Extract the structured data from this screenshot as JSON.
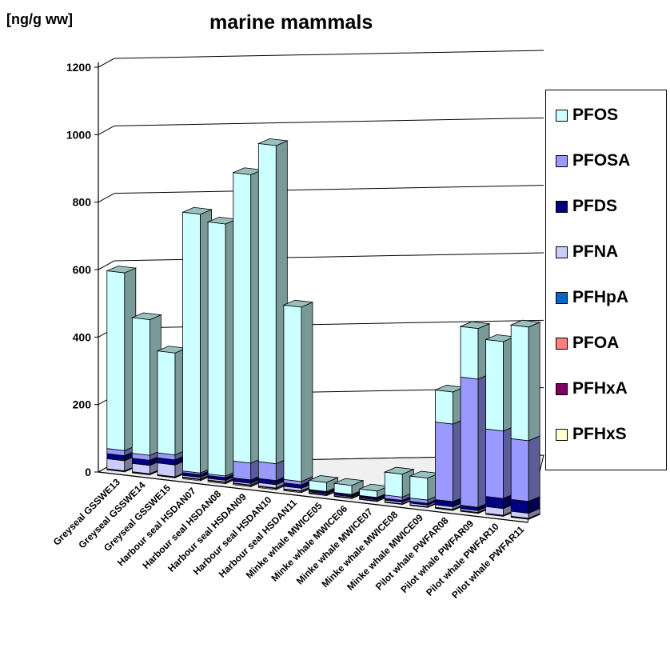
{
  "chart_data": {
    "type": "bar",
    "stacked": true,
    "three_d": true,
    "title": "marine mammals",
    "ylabel": "[ng/g ww]",
    "xlabel": "",
    "ylim": [
      0,
      1200
    ],
    "yticks": [
      0,
      200,
      400,
      600,
      800,
      1000,
      1200
    ],
    "grid": true,
    "legend_position": "right",
    "categories": [
      "Greyseal GSSWE13",
      "Greyseal GSSWE14",
      "Greyseal GSSWE15",
      "Harbour seal HSDAN07",
      "Harbour seal HSDAN08",
      "Harbour seal HSDAN09",
      "Harbour seal HSDAN10",
      "Harbour seal HSDAN11",
      "Minke whale MWICE05",
      "Minke whale MWICE06",
      "Minke whale MWICE07",
      "Minke whale MWICE08",
      "Minke whale MWICE09",
      "Pilot whale PWFAR08",
      "Pilot whale PWFAR09",
      "Pilot whale PWFAR10",
      "Pilot whale PWFAR11"
    ],
    "series": [
      {
        "name": "PFHxS",
        "color": "#ffffcc",
        "values": [
          2,
          2,
          2,
          3,
          3,
          3,
          3,
          3,
          1,
          1,
          1,
          1,
          1,
          2,
          2,
          2,
          2
        ]
      },
      {
        "name": "PFHxA",
        "color": "#800060",
        "values": [
          0,
          0,
          0,
          0,
          0,
          0,
          0,
          0,
          0,
          0,
          0,
          0,
          0,
          0,
          0,
          0,
          0
        ]
      },
      {
        "name": "PFOA",
        "color": "#ff8080",
        "values": [
          1,
          1,
          1,
          2,
          2,
          2,
          2,
          2,
          1,
          1,
          1,
          1,
          1,
          1,
          1,
          1,
          1
        ]
      },
      {
        "name": "PFHpA",
        "color": "#0066cc",
        "values": [
          0,
          0,
          0,
          0,
          0,
          0,
          0,
          0,
          0,
          0,
          0,
          0,
          0,
          0,
          0,
          0,
          0
        ]
      },
      {
        "name": "PFNA",
        "color": "#ccccff",
        "values": [
          30,
          25,
          35,
          5,
          5,
          5,
          10,
          8,
          3,
          3,
          3,
          5,
          5,
          8,
          5,
          20,
          15
        ]
      },
      {
        "name": "PFDS",
        "color": "#000080",
        "values": [
          15,
          15,
          15,
          8,
          8,
          10,
          12,
          10,
          5,
          5,
          5,
          5,
          5,
          15,
          10,
          30,
          35
        ]
      },
      {
        "name": "PFOSA",
        "color": "#9999ff",
        "values": [
          15,
          15,
          15,
          5,
          5,
          50,
          50,
          10,
          2,
          2,
          2,
          10,
          10,
          230,
          380,
          200,
          180
        ]
      },
      {
        "name": "PFOS",
        "color": "#ccffff",
        "values": [
          527,
          402,
          302,
          767,
          747,
          855,
          943,
          517,
          27,
          27,
          19,
          68,
          65,
          95,
          150,
          265,
          337
        ]
      }
    ]
  }
}
